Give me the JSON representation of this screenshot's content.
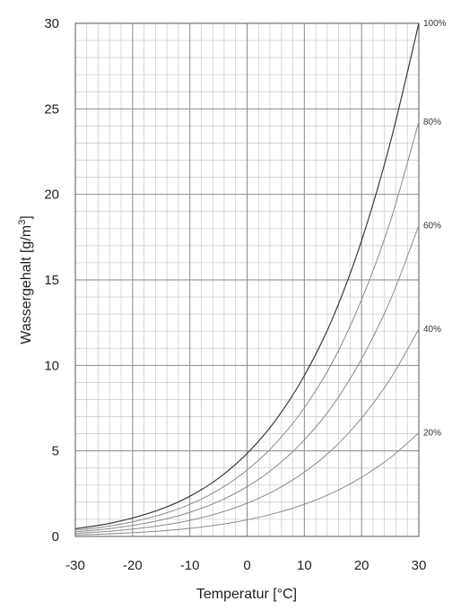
{
  "chart_data": {
    "type": "line",
    "title": "",
    "xlabel": "Temperatur [°C]",
    "ylabel_main": "Wassergehalt [g/m",
    "ylabel_sup": "3",
    "ylabel_end": "]",
    "xlim": [
      -30,
      30
    ],
    "ylim": [
      0,
      30
    ],
    "x_ticks": [
      -30,
      -20,
      -10,
      0,
      10,
      20,
      30
    ],
    "y_ticks": [
      0,
      5,
      10,
      15,
      20,
      25,
      30
    ],
    "x_minor_step": 2,
    "y_minor_step": 1,
    "grid": true,
    "x": [
      -30,
      -25,
      -20,
      -15,
      -10,
      -5,
      0,
      5,
      10,
      15,
      20,
      25,
      30
    ],
    "series": [
      {
        "name": "100%",
        "values": [
          0.45,
          0.7,
          1.08,
          1.6,
          2.35,
          3.4,
          4.85,
          6.8,
          9.4,
          12.8,
          17.3,
          23.0,
          30.3
        ]
      },
      {
        "name": "80%",
        "values": [
          0.36,
          0.56,
          0.86,
          1.28,
          1.88,
          2.72,
          3.88,
          5.44,
          7.52,
          10.24,
          13.84,
          18.4,
          24.24
        ]
      },
      {
        "name": "60%",
        "values": [
          0.27,
          0.42,
          0.65,
          0.96,
          1.41,
          2.04,
          2.91,
          4.08,
          5.64,
          7.68,
          10.38,
          13.8,
          18.18
        ]
      },
      {
        "name": "40%",
        "values": [
          0.18,
          0.28,
          0.43,
          0.64,
          0.94,
          1.36,
          1.94,
          2.72,
          3.76,
          5.12,
          6.92,
          9.2,
          12.12
        ]
      },
      {
        "name": "20%",
        "values": [
          0.09,
          0.14,
          0.22,
          0.32,
          0.47,
          0.68,
          0.97,
          1.36,
          1.88,
          2.56,
          3.46,
          4.6,
          6.06
        ]
      }
    ],
    "colors": {
      "major_grid": "#8a8a8a",
      "minor_grid": "#c8c8c8",
      "curve_100": "#3a3a3a",
      "curve_other": "#8a8a8a",
      "text": "#222222"
    }
  }
}
